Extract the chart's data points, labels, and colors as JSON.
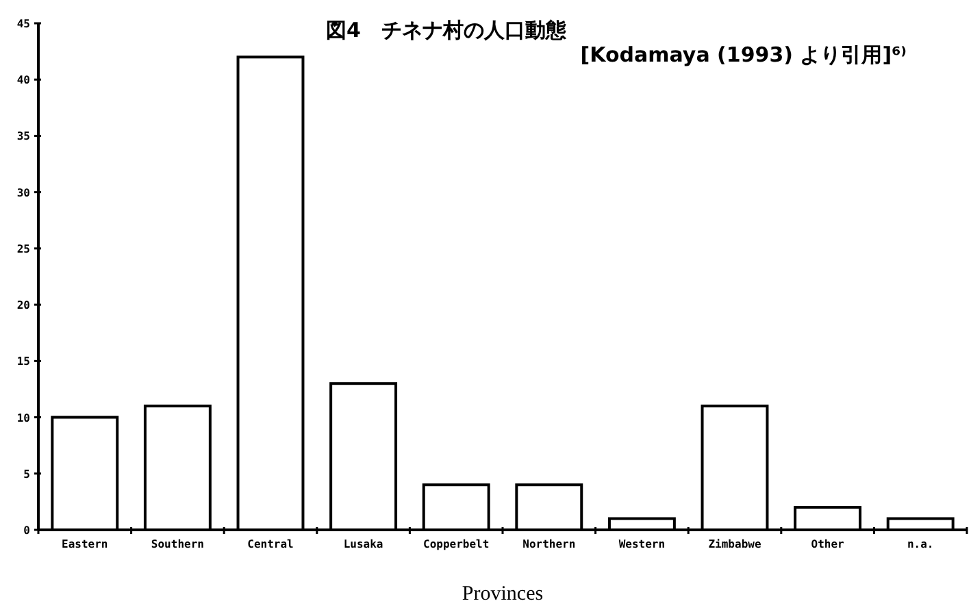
{
  "chart_data": {
    "type": "bar",
    "title": "図4　チネナ村の人口動態",
    "subtitle": "[Kodamaya (1993) より引用]⁶⁾",
    "xlabel": "Provinces",
    "categories": [
      "Eastern",
      "Southern",
      "Central",
      "Lusaka",
      "Copperbelt",
      "Northern",
      "Western",
      "Zimbabwe",
      "Other",
      "n.a."
    ],
    "values": [
      10,
      11,
      42,
      13,
      4,
      4,
      1,
      11,
      2,
      1
    ],
    "color": "#ffffff",
    "ylim": [
      0,
      45
    ],
    "yticks": [
      0,
      5,
      10,
      15,
      20,
      25,
      30,
      35,
      40,
      45
    ],
    "grid": false
  }
}
